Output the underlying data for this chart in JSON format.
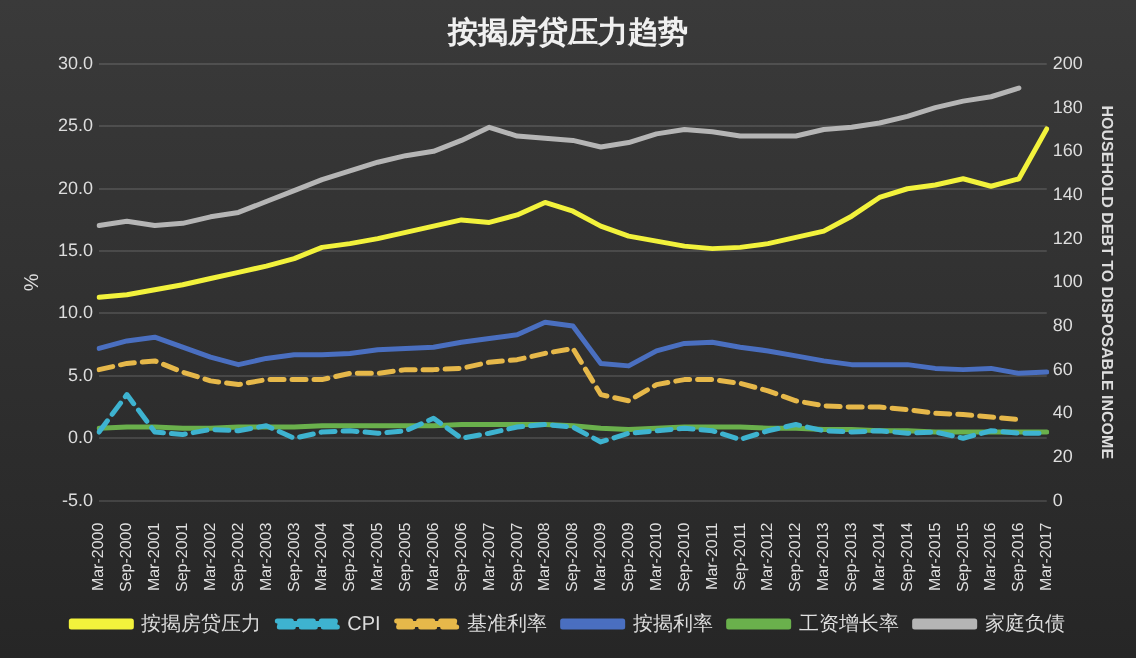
{
  "chart_data": {
    "type": "line",
    "title": "按揭房贷压力趋势",
    "ylabel": "%",
    "y2label": "HOUSEHOLD DEBT TO DISPOSABLE INCOME",
    "categories": [
      "Mar-2000",
      "Sep-2000",
      "Mar-2001",
      "Sep-2001",
      "Mar-2002",
      "Sep-2002",
      "Mar-2003",
      "Sep-2003",
      "Mar-2004",
      "Sep-2004",
      "Mar-2005",
      "Sep-2005",
      "Mar-2006",
      "Sep-2006",
      "Mar-2007",
      "Sep-2007",
      "Mar-2008",
      "Sep-2008",
      "Mar-2009",
      "Sep-2009",
      "Mar-2010",
      "Sep-2010",
      "Mar-2011",
      "Sep-2011",
      "Mar-2012",
      "Sep-2012",
      "Mar-2013",
      "Sep-2013",
      "Mar-2014",
      "Sep-2014",
      "Mar-2015",
      "Sep-2015",
      "Mar-2016",
      "Sep-2016",
      "Mar-2017"
    ],
    "ylim": [
      -5,
      30
    ],
    "yticks": [
      {
        "value": -5,
        "label": "-5.0"
      },
      {
        "value": 0,
        "label": "0.0"
      },
      {
        "value": 5,
        "label": "5.0"
      },
      {
        "value": 10,
        "label": "10.0"
      },
      {
        "value": 15,
        "label": "15.0"
      },
      {
        "value": 20,
        "label": "20.0"
      },
      {
        "value": 25,
        "label": "25.0"
      },
      {
        "value": 30,
        "label": "30.0"
      }
    ],
    "y2lim": [
      0,
      200
    ],
    "y2ticks": [
      0,
      20,
      40,
      60,
      80,
      100,
      120,
      140,
      160,
      180,
      200
    ],
    "grid": "y",
    "legend": "bottom",
    "marker": "none",
    "series": [
      {
        "name": "按揭房贷压力",
        "color": "#f2f23c",
        "line_style": "solid",
        "values": [
          11.3,
          11.5,
          11.9,
          12.3,
          12.8,
          13.3,
          13.8,
          14.4,
          15.3,
          15.6,
          16.0,
          16.5,
          17.0,
          17.5,
          17.3,
          17.9,
          18.9,
          18.2,
          17.0,
          16.2,
          15.8,
          15.4,
          15.2,
          15.3,
          15.6,
          16.1,
          16.6,
          17.8,
          19.3,
          20.0,
          20.3,
          20.8,
          20.2,
          20.8,
          24.8
        ]
      },
      {
        "name": "CPI",
        "color": "#3eb3d0",
        "line_style": "dashed",
        "values": [
          0.5,
          3.5,
          0.5,
          0.3,
          0.7,
          0.6,
          1.0,
          0.0,
          0.5,
          0.6,
          0.4,
          0.6,
          1.6,
          0.0,
          0.4,
          0.9,
          1.1,
          0.9,
          -0.3,
          0.4,
          0.6,
          0.8,
          0.6,
          -0.1,
          0.6,
          1.1,
          0.6,
          0.5,
          0.6,
          0.4,
          0.5,
          0.0,
          0.6,
          0.4,
          0.4
        ]
      },
      {
        "name": "基准利率",
        "color": "#e6b84a",
        "line_style": "dashed",
        "values": [
          5.5,
          6.0,
          6.2,
          5.3,
          4.6,
          4.3,
          4.7,
          4.7,
          4.7,
          5.2,
          5.2,
          5.5,
          5.5,
          5.6,
          6.1,
          6.3,
          6.8,
          7.2,
          3.5,
          3.0,
          4.3,
          4.7,
          4.7,
          4.4,
          3.8,
          3.0,
          2.6,
          2.5,
          2.5,
          2.3,
          2.0,
          1.9,
          1.7,
          1.5,
          null
        ]
      },
      {
        "name": "按揭利率",
        "color": "#4a6fc0",
        "line_style": "solid",
        "values": [
          7.2,
          7.8,
          8.1,
          7.3,
          6.5,
          5.9,
          6.4,
          6.7,
          6.7,
          6.8,
          7.1,
          7.2,
          7.3,
          7.7,
          8.0,
          8.3,
          9.3,
          9.0,
          6.0,
          5.8,
          7.0,
          7.6,
          7.7,
          7.3,
          7.0,
          6.6,
          6.2,
          5.9,
          5.9,
          5.9,
          5.6,
          5.5,
          5.6,
          5.2,
          5.3
        ]
      },
      {
        "name": "工资增长率",
        "color": "#6ab04c",
        "line_style": "solid",
        "values": [
          0.8,
          0.9,
          0.9,
          0.8,
          0.8,
          0.9,
          0.9,
          0.9,
          1.0,
          1.0,
          1.0,
          1.0,
          1.0,
          1.1,
          1.1,
          1.1,
          1.1,
          1.0,
          0.8,
          0.7,
          0.8,
          0.9,
          0.9,
          0.9,
          0.8,
          0.8,
          0.7,
          0.7,
          0.6,
          0.6,
          0.5,
          0.5,
          0.5,
          0.5,
          0.5
        ]
      },
      {
        "name": "家庭负债",
        "color": "#b5b5b5",
        "line_style": "solid",
        "axis": "y2",
        "values": [
          126,
          128,
          126,
          127,
          130,
          132,
          137,
          142,
          147,
          151,
          155,
          158,
          160,
          165,
          171,
          167,
          166,
          165,
          162,
          164,
          168,
          170,
          169,
          167,
          167,
          167,
          170,
          171,
          173,
          176,
          180,
          183,
          185,
          189,
          null
        ]
      }
    ]
  }
}
